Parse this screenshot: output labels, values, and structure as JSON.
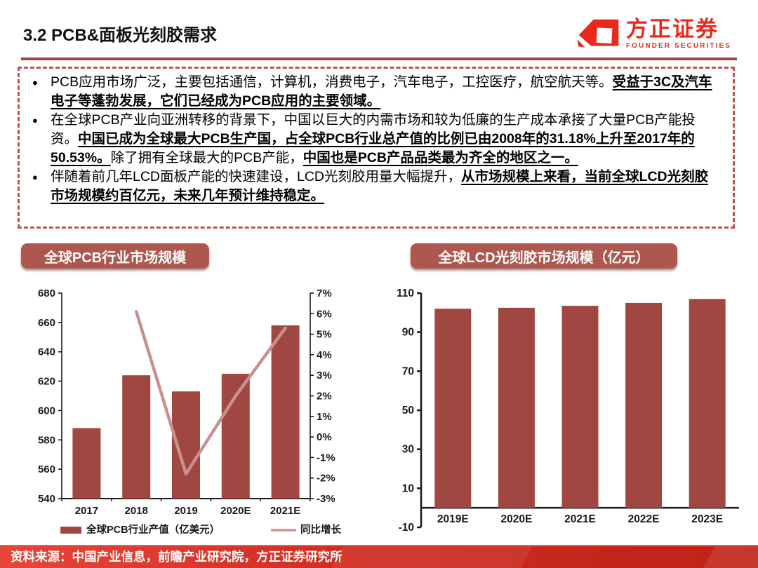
{
  "header": {
    "title": "3.2 PCB&面板光刻胶需求",
    "logo": {
      "cn": "方正证券",
      "en": "FOUNDER SECURITIES"
    }
  },
  "bullets": [
    [
      {
        "t": "PCB应用市场广泛，主要包括通信，计算机，消费电子，汽车电子，工控医疗，航空航天等。",
        "b": false
      },
      {
        "t": "受益于3C及汽车电子等蓬勃发展，它们已经成为PCB应用的主要领域。",
        "b": true
      }
    ],
    [
      {
        "t": "在全球PCB产业向亚洲转移的背景下，中国以巨大的内需市场和较为低廉的生产成本承接了大量PCB产能投资。",
        "b": false
      },
      {
        "t": "中国已成为全球最大PCB生产国，占全球PCB行业总产值的比例已由2008年的31.18%上升至2017年的50.53%。",
        "b": true
      },
      {
        "t": "除了拥有全球最大的PCB产能，",
        "b": false
      },
      {
        "t": "中国也是PCB产品品类最为齐全的地区之一。",
        "b": true
      }
    ],
    [
      {
        "t": "伴随着前几年LCD面板产能的快速建设，LCD光刻胶用量大幅提升，",
        "b": false
      },
      {
        "t": "从市场规模上来看，当前全球LCD光刻胶市场规模约百亿元，未来几年预计维持稳定。",
        "b": true
      }
    ]
  ],
  "charts": {
    "left_title": "全球PCB行业市场规模",
    "right_title": "全球LCD光刻胶市场规模（亿元）"
  },
  "chart_data": [
    {
      "type": "bar",
      "title": "全球PCB行业市场规模",
      "categories": [
        "2017",
        "2018",
        "2019",
        "2020E",
        "2021E"
      ],
      "series": [
        {
          "name": "全球PCB行业产值（亿美元）",
          "type": "bar",
          "axis": "left",
          "values": [
            588,
            624,
            613,
            625,
            658
          ]
        },
        {
          "name": "同比增长",
          "type": "line",
          "axis": "right",
          "values": [
            null,
            6.1,
            -1.8,
            2.0,
            5.3
          ]
        }
      ],
      "left_axis": {
        "min": 540,
        "max": 680,
        "step": 20
      },
      "right_axis": {
        "min": -3,
        "max": 7,
        "step": 1,
        "suffix": "%"
      },
      "legend_position": "bottom",
      "grid": false
    },
    {
      "type": "bar",
      "title": "全球LCD光刻胶市场规模（亿元）",
      "categories": [
        "2019E",
        "2020E",
        "2021E",
        "2022E",
        "2023E"
      ],
      "values": [
        102,
        102.5,
        103.5,
        105,
        107
      ],
      "ylim": [
        -10,
        110
      ],
      "y_step": 20,
      "grid": false
    }
  ],
  "footer": {
    "source": "资料来源：中国产业信息，前瞻产业研究院，方正证券研究所"
  },
  "colors": {
    "bar": "#A04741",
    "line": "#C9908F",
    "banner": "#AE574F",
    "dashed_border": "#C0504D",
    "header_rule": "#A4453F",
    "logo_red": "#E8291C",
    "axis": "#1a1a1a",
    "footer_red": "#D12C20"
  }
}
